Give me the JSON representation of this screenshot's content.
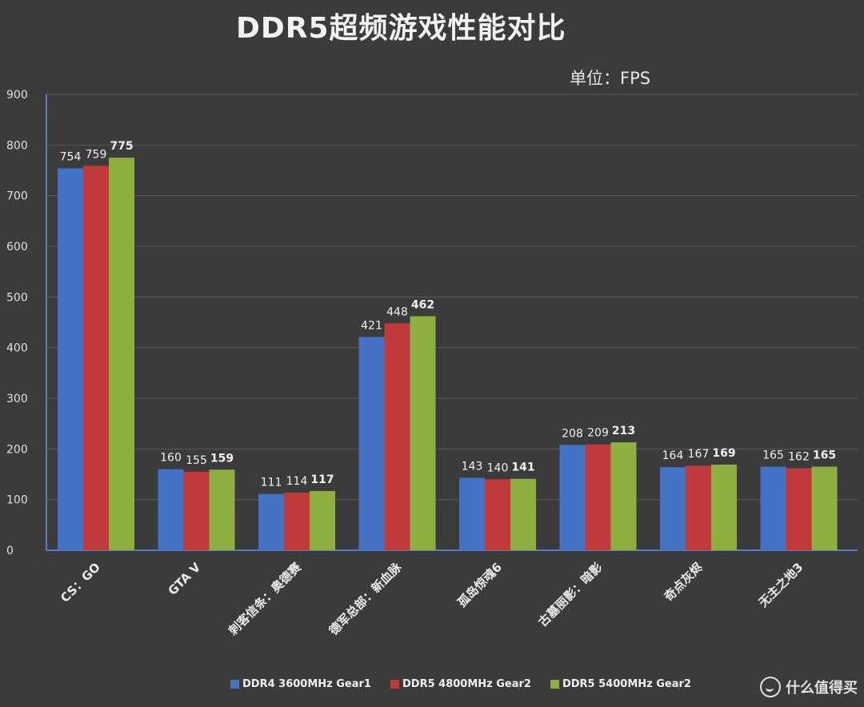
{
  "chart_data": {
    "type": "bar",
    "title": "DDR5超频游戏性能对比",
    "unit_label": "单位：FPS",
    "ylim": [
      0,
      900
    ],
    "yticks": [
      0,
      100,
      200,
      300,
      400,
      500,
      600,
      700,
      800,
      900
    ],
    "grid": true,
    "legend_position": "bottom",
    "categories": [
      "CS：GO",
      "GTA V",
      "刺客信条：奥德赛",
      "德军总部：新血脉",
      "孤岛惊魂6",
      "古墓丽影：暗影",
      "奇点灰烬",
      "无主之地3"
    ],
    "series": [
      {
        "name": "DDR4 3600MHz Gear1",
        "color": "#4472c4",
        "values": [
          754,
          160,
          111,
          421,
          143,
          208,
          164,
          165
        ]
      },
      {
        "name": "DDR5 4800MHz Gear2",
        "color": "#c0393b",
        "values": [
          759,
          155,
          114,
          448,
          140,
          209,
          167,
          162
        ]
      },
      {
        "name": "DDR5 5400MHz Gear2",
        "color": "#8db041",
        "values": [
          775,
          159,
          117,
          462,
          141,
          213,
          169,
          165
        ]
      }
    ]
  },
  "watermark": {
    "text": "什么值得买",
    "logo_icon": "smzdm-logo-icon"
  }
}
